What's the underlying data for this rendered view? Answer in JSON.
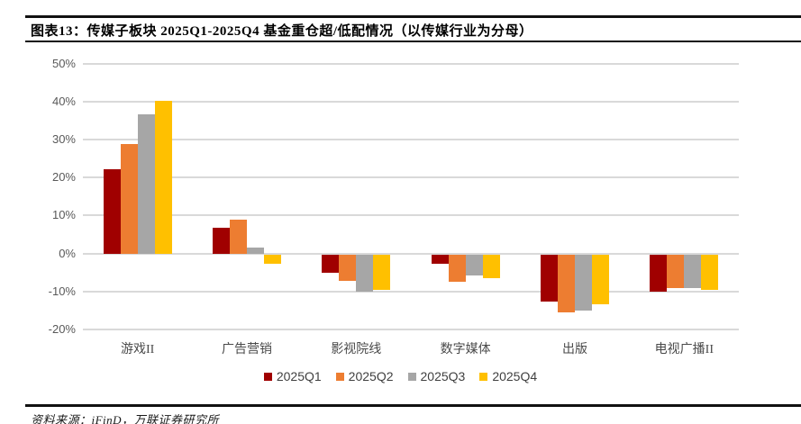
{
  "header": {
    "title": "图表13：传媒子板块 2025Q1-2025Q4 基金重仓超/低配情况（以传媒行业为分母）"
  },
  "chart_data": {
    "type": "bar",
    "title": "传媒子板块 2025Q1-2025Q4 基金重仓超/低配情况（以传媒行业为分母）",
    "unit": "%",
    "categories": [
      "游戏II",
      "广告营销",
      "影视院线",
      "数字媒体",
      "出版",
      "电视广播II"
    ],
    "series": [
      {
        "name": "2025Q1",
        "color": "#A00000",
        "values": [
          22.3,
          6.7,
          -4.8,
          -2.5,
          -12.4,
          -9.9
        ]
      },
      {
        "name": "2025Q2",
        "color": "#ED7D31",
        "values": [
          28.8,
          8.9,
          -7.0,
          -7.1,
          -15.2,
          -8.9
        ]
      },
      {
        "name": "2025Q3",
        "color": "#A6A6A6",
        "values": [
          36.6,
          1.7,
          -9.7,
          -5.6,
          -14.7,
          -8.8
        ]
      },
      {
        "name": "2025Q4",
        "color": "#FFC000",
        "values": [
          40.2,
          -2.5,
          -9.2,
          -6.2,
          -13.0,
          -9.4
        ]
      }
    ],
    "ylim": [
      -20,
      50
    ],
    "yticks": [
      50,
      40,
      30,
      20,
      10,
      0,
      -10,
      -20
    ],
    "ytick_labels": [
      "50%",
      "40%",
      "30%",
      "20%",
      "10%",
      "0%",
      "-10%",
      "-20%"
    ],
    "grid": true,
    "gridline_color": "#d9d9d9",
    "axis_text_color": "#595959",
    "legend_position": "bottom"
  },
  "footer": {
    "source": "资料来源：iFinD，万联证券研究所"
  }
}
